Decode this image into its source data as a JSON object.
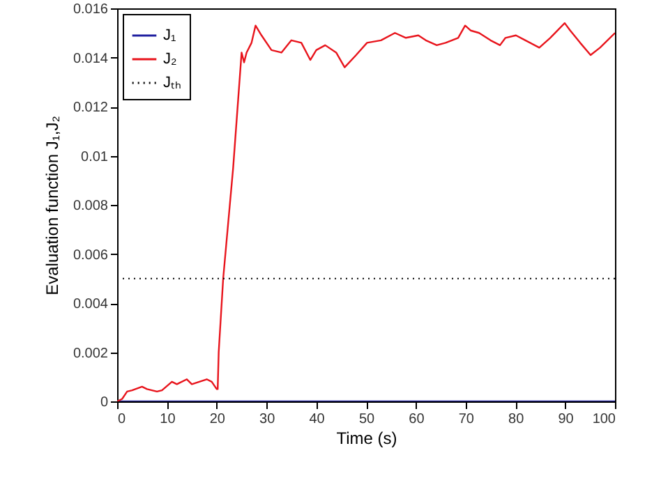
{
  "chart_data": {
    "type": "line",
    "xlabel": "Time (s)",
    "ylabel": "Evaluation function J₁,J₂",
    "xlim": [
      0,
      100
    ],
    "xticks": [
      0,
      10,
      20,
      30,
      40,
      50,
      60,
      70,
      80,
      90,
      100
    ],
    "ylim": [
      0,
      0.016
    ],
    "yticks": [
      0,
      0.002,
      0.004,
      0.006,
      0.008,
      0.01,
      0.012,
      0.014,
      0.016
    ],
    "legend": "top left",
    "grid": false,
    "series": [
      {
        "name": "J₁",
        "color": "#2020a0",
        "x": [
          0,
          100
        ],
        "values": [
          0,
          0
        ]
      },
      {
        "name": "J₂",
        "color": "#e8141c",
        "x": [
          0,
          1,
          2,
          3,
          5,
          6,
          8,
          9,
          11,
          12,
          14,
          15,
          18,
          19,
          20,
          20.2,
          20.4,
          21.3,
          23.3,
          25,
          25.5,
          26,
          27,
          27.8,
          29,
          31,
          33,
          35,
          37,
          38.8,
          40,
          41.8,
          44,
          45.7,
          48,
          50.2,
          53,
          55.8,
          58,
          60.5,
          62,
          64.2,
          66,
          68.5,
          69.9,
          71,
          72.7,
          75,
          76.9,
          78,
          80.1,
          82,
          84.8,
          87,
          89.9,
          91,
          93,
          95.1,
          97,
          100
        ],
        "values": [
          0,
          0.0001,
          0.0004,
          0.00045,
          0.0006,
          0.0005,
          0.0004,
          0.00045,
          0.0008,
          0.0007,
          0.0009,
          0.0007,
          0.0009,
          0.0008,
          0.0005,
          0.0005,
          0.002,
          0.005,
          0.0095,
          0.0142,
          0.0138,
          0.0142,
          0.0146,
          0.0153,
          0.0149,
          0.0143,
          0.0142,
          0.0147,
          0.0146,
          0.0139,
          0.0143,
          0.0145,
          0.0142,
          0.0136,
          0.0141,
          0.0146,
          0.0147,
          0.015,
          0.0148,
          0.0149,
          0.0147,
          0.0145,
          0.0146,
          0.0148,
          0.0153,
          0.0151,
          0.015,
          0.0147,
          0.0145,
          0.0148,
          0.0149,
          0.0147,
          0.0144,
          0.0148,
          0.0154,
          0.0151,
          0.0146,
          0.0141,
          0.0144,
          0.015
        ]
      }
    ],
    "ref_lines": [
      {
        "axis": "y",
        "value": 0.005,
        "label": "Jₜₕ",
        "color": "#000000",
        "line_style": "dotted"
      }
    ]
  }
}
